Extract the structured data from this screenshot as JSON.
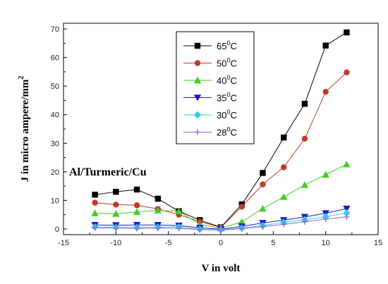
{
  "chart_data": {
    "type": "line",
    "xlabel": "V in volt",
    "ylabel": "J in micro ampere/mm",
    "ylabel_sup": "2",
    "annotation": "Al/Turmeric/Cu",
    "xlim": [
      -15,
      15
    ],
    "ylim": [
      -2,
      72
    ],
    "xticks": [
      -15,
      -10,
      -5,
      0,
      5,
      10,
      15
    ],
    "yticks": [
      0,
      10,
      20,
      30,
      40,
      50,
      60,
      70
    ],
    "grid": false,
    "legend_position": "top-center",
    "x": [
      -12,
      -10,
      -8,
      -6,
      -4,
      -2,
      0,
      2,
      4,
      6,
      8,
      10,
      12
    ],
    "series": [
      {
        "name": "65",
        "unit": "C",
        "sup": "0",
        "color": "#000000",
        "marker": "square",
        "values": [
          12,
          13,
          13.8,
          10.6,
          6.2,
          3.1,
          0.6,
          8.6,
          19.6,
          32,
          43.8,
          64.2,
          68.8
        ]
      },
      {
        "name": "50",
        "unit": "C",
        "sup": "0",
        "color": "#c0392b",
        "marker": "circle",
        "values": [
          9.2,
          8.5,
          8.3,
          7,
          5,
          2.6,
          0.5,
          7.8,
          15.6,
          21.6,
          31.6,
          48,
          54.8
        ]
      },
      {
        "name": "40",
        "unit": "C",
        "sup": "0",
        "color": "#44cc22",
        "marker": "triangle-up",
        "values": [
          5.5,
          5.3,
          6,
          6.5,
          6.2,
          1.6,
          0.2,
          2.5,
          7.1,
          11.2,
          15.4,
          19,
          22.6
        ]
      },
      {
        "name": "35",
        "unit": "C",
        "sup": "0",
        "color": "#1a1acc",
        "marker": "triangle-down",
        "values": [
          1.4,
          1.3,
          1.4,
          1.4,
          1.2,
          0.4,
          -0.1,
          0.9,
          2.1,
          3.1,
          4.2,
          5.5,
          7.1
        ]
      },
      {
        "name": "30",
        "unit": "C",
        "sup": "0",
        "color": "#33ccee",
        "marker": "diamond",
        "values": [
          0.7,
          0.5,
          0.5,
          0.6,
          0.7,
          -0.1,
          -0.3,
          0.3,
          1.2,
          2.3,
          3.2,
          4.3,
          5.6
        ]
      },
      {
        "name": "28",
        "unit": "C",
        "sup": "0",
        "color": "#9966cc",
        "marker": "plus",
        "values": [
          0.4,
          0.3,
          0.2,
          0.3,
          0.2,
          -0.2,
          -0.4,
          0.1,
          0.8,
          1.6,
          2.5,
          3.5,
          4.2
        ]
      }
    ]
  }
}
